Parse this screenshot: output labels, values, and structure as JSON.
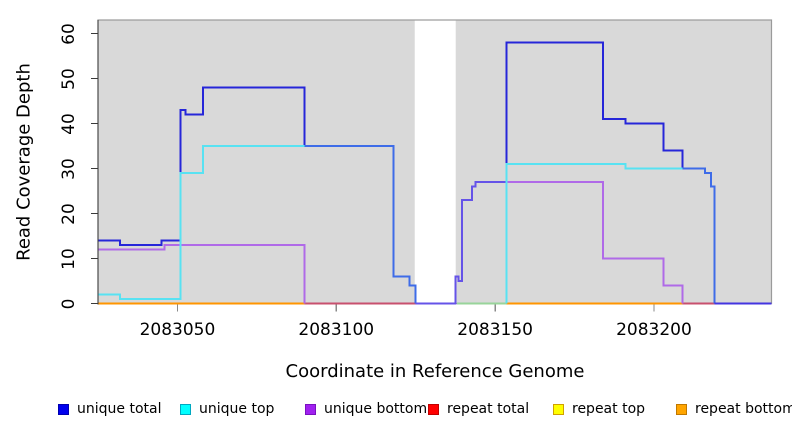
{
  "chart_data": {
    "type": "line",
    "subtype": "step-coverage",
    "title": "",
    "xlabel": "Coordinate in Reference Genome",
    "ylabel": "Read Coverage Depth",
    "x_ticks": [
      2083050,
      2083100,
      2083150,
      2083200
    ],
    "y_ticks": [
      0,
      10,
      20,
      30,
      40,
      50,
      60
    ],
    "xlim": [
      2083025,
      2083237
    ],
    "ylim": [
      0,
      63
    ],
    "grid": false,
    "panel_bg": "#d9d9d9",
    "panel_border": "#9a9a9a",
    "masked_gap": {
      "x_start": 2083124.7,
      "x_end": 2083137.6,
      "fill": "#ffffff"
    },
    "series": [
      {
        "name": "repeat total",
        "segments": [
          {
            "color": "#c8506e",
            "steps": [
              [
                2083090,
                0
              ]
            ],
            "end": 2083125
          },
          {
            "color": "#c8506e",
            "steps": [
              [
                2083209,
                0
              ]
            ],
            "end": 2083219
          }
        ]
      },
      {
        "name": "repeat top",
        "segments": [
          {
            "color": "#98d49a",
            "steps": [
              [
                2083138,
                0
              ]
            ],
            "end": 2083153.6
          }
        ]
      },
      {
        "name": "repeat bottom",
        "segments": [
          {
            "color": "#ff9500",
            "steps": [
              [
                2083025,
                0
              ]
            ],
            "end": 2083090
          },
          {
            "color": "#ff9500",
            "steps": [
              [
                2083153.6,
                0
              ]
            ],
            "end": 2083209
          }
        ]
      },
      {
        "name": "unique bottom",
        "segments": [
          {
            "color": "#b06ae8",
            "steps": [
              [
                2083025,
                12
              ],
              [
                2083046,
                13
              ],
              [
                2083090,
                0
              ]
            ],
            "end": 2083090
          },
          {
            "color": "#b06ae8",
            "steps": [
              [
                2083143.8,
                27
              ],
              [
                2083184,
                10
              ],
              [
                2083203,
                4
              ],
              [
                2083209,
                0
              ]
            ],
            "end": 2083209
          }
        ]
      },
      {
        "name": "unique total",
        "segments": [
          {
            "color": "#2626d9",
            "steps": [
              [
                2083025,
                14
              ],
              [
                2083032,
                13
              ],
              [
                2083045,
                14
              ],
              [
                2083051,
                43
              ],
              [
                2083052.5,
                42
              ],
              [
                2083058,
                48
              ],
              [
                2083090,
                35
              ]
            ],
            "end": 2083090
          },
          {
            "color": "#3e6ce8",
            "steps": [
              [
                2083090,
                35
              ],
              [
                2083118,
                6
              ],
              [
                2083123,
                4
              ],
              [
                2083125,
                0
              ]
            ],
            "end": 2083125
          },
          {
            "color": "#6553e8",
            "steps": [
              [
                2083125,
                0
              ],
              [
                2083137.5,
                6
              ],
              [
                2083138.5,
                5
              ],
              [
                2083139.5,
                23
              ],
              [
                2083142.8,
                26
              ],
              [
                2083143.8,
                27
              ]
            ],
            "end": 2083153.6
          },
          {
            "color": "#2626d9",
            "steps": [
              [
                2083153.6,
                27
              ],
              [
                2083153.6,
                58
              ],
              [
                2083184,
                41
              ],
              [
                2083191,
                40
              ],
              [
                2083203,
                34
              ],
              [
                2083209,
                30
              ]
            ],
            "end": 2083209
          },
          {
            "color": "#3e6ce8",
            "steps": [
              [
                2083209,
                30
              ],
              [
                2083216,
                29
              ],
              [
                2083218,
                26
              ],
              [
                2083219,
                0
              ]
            ],
            "end": 2083219
          },
          {
            "color": "#4435e0",
            "steps": [
              [
                2083219,
                0
              ]
            ],
            "end": 2083237
          }
        ]
      },
      {
        "name": "unique top",
        "segments": [
          {
            "color": "#58e2f2",
            "steps": [
              [
                2083025,
                2
              ],
              [
                2083032,
                1
              ],
              [
                2083051,
                29
              ],
              [
                2083058,
                35
              ]
            ],
            "end": 2083090
          },
          {
            "color": "#58e2f2",
            "steps": [
              [
                2083153.6,
                0
              ],
              [
                2083153.6,
                31
              ],
              [
                2083191,
                30
              ]
            ],
            "end": 2083209
          }
        ]
      }
    ],
    "legend_position": "bottom"
  },
  "legend": {
    "items": [
      {
        "label": "unique total",
        "fill": "#0000ee",
        "border": "#0000b0"
      },
      {
        "label": "unique top",
        "fill": "#00ffff",
        "border": "#00a8c0"
      },
      {
        "label": "unique bottom",
        "fill": "#a020f0",
        "border": "#7a10c0"
      },
      {
        "label": "repeat total",
        "fill": "#ff0000",
        "border": "#c00000"
      },
      {
        "label": "repeat top",
        "fill": "#ffff00",
        "border": "#d0a000"
      },
      {
        "label": "repeat bottom",
        "fill": "#ffa500",
        "border": "#c07800"
      }
    ]
  }
}
